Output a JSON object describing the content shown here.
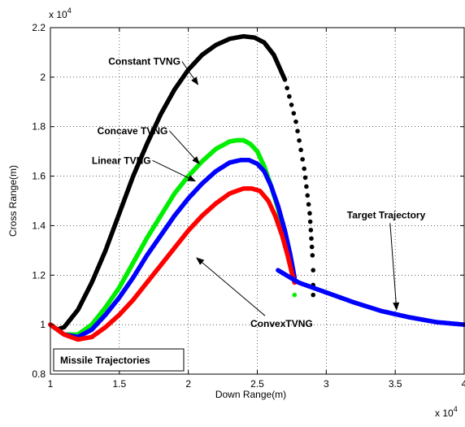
{
  "chart_data": {
    "type": "line",
    "title": "",
    "xlabel": "Down Range(m)",
    "ylabel": "Cross Range(m)",
    "x_multiplier": "x 10",
    "x_multiplier_exp": "4",
    "y_multiplier": "x 10",
    "y_multiplier_exp": "4",
    "xlim": [
      1,
      4
    ],
    "ylim": [
      0.8,
      2.2
    ],
    "xticks": [
      1,
      1.5,
      2,
      2.5,
      3,
      3.5,
      4
    ],
    "yticks": [
      0.8,
      1,
      1.2,
      1.4,
      1.6,
      1.8,
      2,
      2.2
    ],
    "xtick_labels": [
      "1",
      "1.5",
      "2",
      "2.5",
      "3",
      "3.5",
      "4"
    ],
    "ytick_labels": [
      "0.8",
      "1",
      "1.2",
      "1.4",
      "1.6",
      "1.8",
      "2",
      "2.2"
    ],
    "grid": true,
    "series": [
      {
        "name": "Constant TVNG",
        "color": "#000000",
        "x": [
          1.0,
          1.05,
          1.1,
          1.2,
          1.3,
          1.4,
          1.5,
          1.6,
          1.7,
          1.8,
          1.9,
          2.0,
          2.1,
          2.2,
          2.3,
          2.4,
          2.48,
          2.55,
          2.62,
          2.7,
          2.78,
          2.84,
          2.88,
          2.9
        ],
        "y": [
          1.0,
          0.98,
          0.99,
          1.06,
          1.17,
          1.3,
          1.45,
          1.6,
          1.73,
          1.85,
          1.95,
          2.03,
          2.09,
          2.13,
          2.155,
          2.165,
          2.16,
          2.14,
          2.09,
          1.99,
          1.82,
          1.63,
          1.45,
          1.28
        ]
      },
      {
        "name": "Concave TVNG",
        "color": "#00ee00",
        "x": [
          1.0,
          1.1,
          1.2,
          1.3,
          1.4,
          1.5,
          1.6,
          1.7,
          1.8,
          1.9,
          2.0,
          2.1,
          2.2,
          2.3,
          2.35,
          2.4,
          2.45,
          2.5,
          2.55,
          2.6,
          2.65,
          2.7,
          2.74,
          2.77
        ],
        "y": [
          1.0,
          0.96,
          0.96,
          1.0,
          1.07,
          1.15,
          1.25,
          1.35,
          1.44,
          1.53,
          1.6,
          1.66,
          1.71,
          1.74,
          1.745,
          1.745,
          1.73,
          1.7,
          1.64,
          1.56,
          1.47,
          1.36,
          1.26,
          1.18
        ]
      },
      {
        "name": "Linear TVNG",
        "color": "#0000ff",
        "x": [
          1.0,
          1.1,
          1.2,
          1.3,
          1.4,
          1.5,
          1.6,
          1.7,
          1.8,
          1.9,
          2.0,
          2.1,
          2.2,
          2.3,
          2.38,
          2.44,
          2.5,
          2.55,
          2.6,
          2.65,
          2.7,
          2.74,
          2.77
        ],
        "y": [
          1.0,
          0.96,
          0.95,
          0.98,
          1.04,
          1.11,
          1.19,
          1.28,
          1.36,
          1.44,
          1.51,
          1.57,
          1.62,
          1.655,
          1.665,
          1.665,
          1.65,
          1.62,
          1.56,
          1.48,
          1.38,
          1.28,
          1.19
        ]
      },
      {
        "name": "ConvexTVNG",
        "color": "#ff0000",
        "x": [
          1.0,
          1.1,
          1.2,
          1.3,
          1.4,
          1.5,
          1.6,
          1.7,
          1.8,
          1.9,
          2.0,
          2.1,
          2.2,
          2.3,
          2.4,
          2.46,
          2.52,
          2.58,
          2.63,
          2.68,
          2.72,
          2.75,
          2.77
        ],
        "y": [
          1.0,
          0.96,
          0.94,
          0.95,
          0.99,
          1.04,
          1.1,
          1.17,
          1.24,
          1.31,
          1.38,
          1.44,
          1.49,
          1.53,
          1.55,
          1.55,
          1.54,
          1.5,
          1.44,
          1.36,
          1.28,
          1.21,
          1.17
        ]
      },
      {
        "name": "Target Trajectory",
        "color": "#0000ff",
        "x": [
          2.65,
          2.8,
          3.0,
          3.2,
          3.4,
          3.6,
          3.8,
          4.0
        ],
        "y": [
          1.22,
          1.17,
          1.13,
          1.09,
          1.055,
          1.03,
          1.01,
          1.0
        ]
      }
    ],
    "annotations": [
      {
        "text": "Constant TVNG",
        "x": 1.42,
        "y": 2.05,
        "arrow_to": [
          2.07,
          1.97
        ]
      },
      {
        "text": "Concave TVNG",
        "x": 1.34,
        "y": 1.77,
        "arrow_to": [
          2.08,
          1.65
        ]
      },
      {
        "text": "Linear TVNG",
        "x": 1.3,
        "y": 1.65,
        "arrow_to": [
          2.05,
          1.58
        ]
      },
      {
        "text": "Target Trajectory",
        "x": 3.15,
        "y": 1.43,
        "arrow_to": [
          3.51,
          1.06
        ]
      },
      {
        "text": "ConvexTVNG",
        "x": 2.45,
        "y": 0.99,
        "arrow_to": [
          2.06,
          1.27
        ]
      }
    ],
    "legend_box_text": "Missile Trajectories"
  }
}
